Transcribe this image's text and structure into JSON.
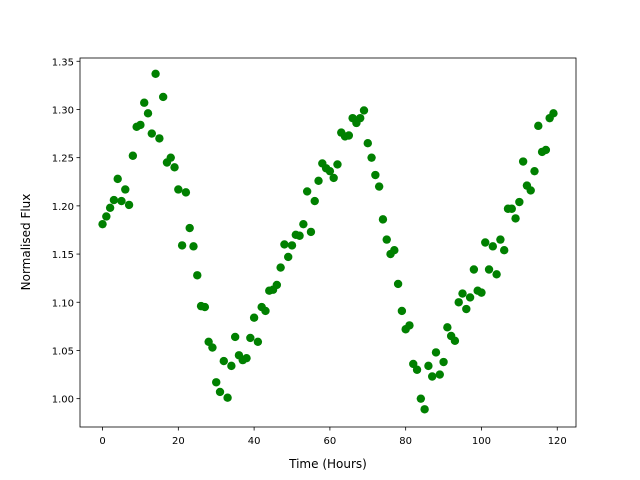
{
  "chart_data": {
    "type": "scatter",
    "x_label": "Time (Hours)",
    "y_label": "Normalised Flux",
    "color": "#008000",
    "xlim": [
      -5.95,
      124.95
    ],
    "ylim": [
      0.9706,
      1.3534
    ],
    "xticks": [
      0,
      20,
      40,
      60,
      80,
      100,
      120
    ],
    "yticks": [
      {
        "value": 1.0,
        "label": "1.00"
      },
      1.05,
      {
        "value": 1.1,
        "label": "1.10"
      },
      1.15,
      {
        "value": 1.2,
        "label": "1.20"
      },
      1.25,
      {
        "value": 1.3,
        "label": "1.30"
      },
      1.35
    ],
    "x": [
      0,
      1,
      2,
      3,
      4,
      5,
      6,
      7,
      8,
      9,
      10,
      11,
      12,
      13,
      14,
      15,
      16,
      17,
      18,
      19,
      20,
      21,
      22,
      23,
      24,
      25,
      26,
      27,
      28,
      29,
      30,
      31,
      32,
      33,
      34,
      35,
      36,
      37,
      38,
      39,
      40,
      41,
      42,
      43,
      44,
      45,
      46,
      47,
      48,
      49,
      50,
      51,
      52,
      53,
      54,
      55,
      56,
      57,
      58,
      59,
      60,
      61,
      62,
      63,
      64,
      65,
      66,
      67,
      68,
      69,
      70,
      71,
      72,
      73,
      74,
      75,
      76,
      77,
      78,
      79,
      80,
      81,
      82,
      83,
      84,
      85,
      86,
      87,
      88,
      89,
      90,
      91,
      92,
      93,
      94,
      95,
      96,
      97,
      98,
      99,
      100,
      101,
      102,
      103,
      104,
      105,
      106,
      107,
      108,
      109,
      110,
      111,
      112,
      113,
      114,
      115,
      116,
      117,
      118,
      119
    ],
    "values": [
      1.181,
      1.189,
      1.198,
      1.206,
      1.228,
      1.205,
      1.217,
      1.201,
      1.252,
      1.282,
      1.284,
      1.307,
      1.296,
      1.275,
      1.337,
      1.27,
      1.313,
      1.245,
      1.25,
      1.24,
      1.217,
      1.159,
      1.214,
      1.177,
      1.158,
      1.128,
      1.096,
      1.095,
      1.059,
      1.053,
      1.017,
      1.007,
      1.039,
      1.001,
      1.034,
      1.064,
      1.045,
      1.04,
      1.042,
      1.063,
      1.084,
      1.059,
      1.095,
      1.091,
      1.112,
      1.113,
      1.118,
      1.136,
      1.16,
      1.147,
      1.159,
      1.17,
      1.169,
      1.181,
      1.215,
      1.173,
      1.205,
      1.226,
      1.244,
      1.239,
      1.236,
      1.229,
      1.243,
      1.276,
      1.272,
      1.273,
      1.291,
      1.286,
      1.291,
      1.299,
      1.265,
      1.25,
      1.232,
      1.22,
      1.186,
      1.165,
      1.15,
      1.154,
      1.119,
      1.091,
      1.072,
      1.076,
      1.036,
      1.03,
      1.0,
      0.989,
      1.034,
      1.023,
      1.048,
      1.025,
      1.038,
      1.074,
      1.065,
      1.06,
      1.1,
      1.109,
      1.093,
      1.105,
      1.134,
      1.112,
      1.11,
      1.162,
      1.134,
      1.158,
      1.129,
      1.165,
      1.154,
      1.197,
      1.197,
      1.187,
      1.204,
      1.246,
      1.221,
      1.216,
      1.236,
      1.283,
      1.256,
      1.258,
      1.291,
      1.296
    ]
  }
}
